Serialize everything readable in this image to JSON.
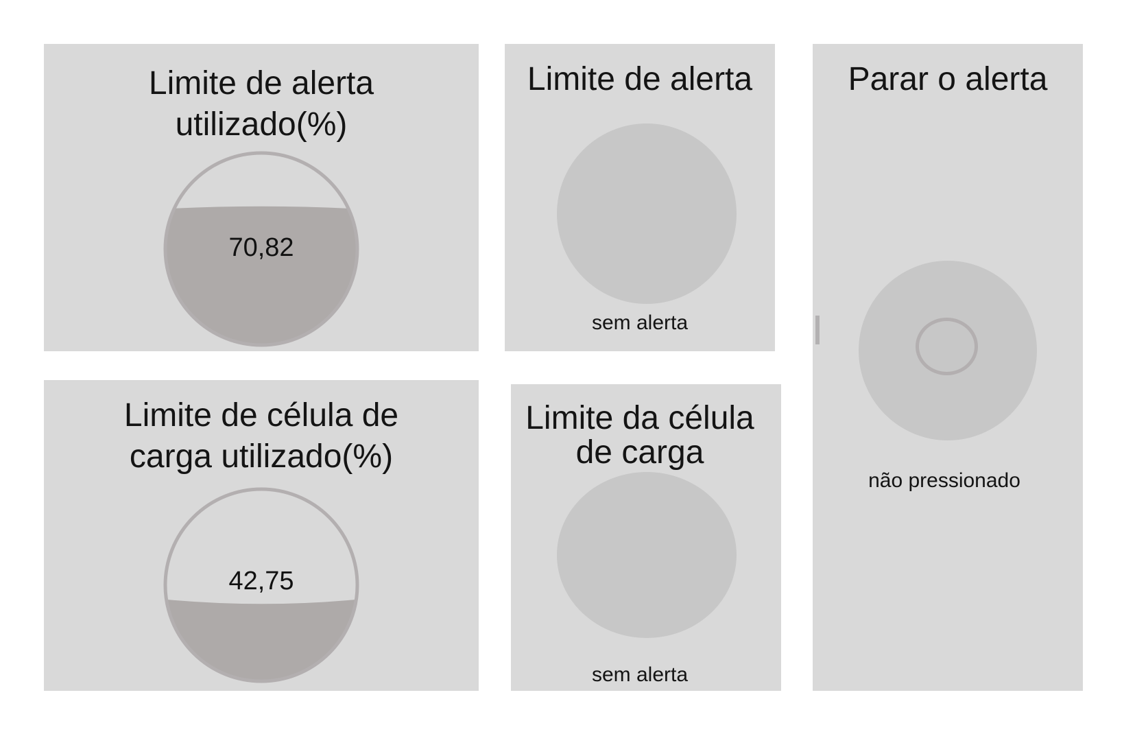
{
  "colors": {
    "panel": "#d9d9d9",
    "lamp_off": "#c7c7c7",
    "gauge_fill": "#aeaaa9",
    "gauge_ring": "#b3afb0",
    "text": "#141414"
  },
  "panels": {
    "alert_used": {
      "title_line1": "Limite de alerta",
      "title_line2": "utilizado(%)",
      "value": "70,82",
      "level_percent": 70.82
    },
    "alert_limit": {
      "title": "Limite de alerta",
      "status": "sem alerta"
    },
    "stop_alert": {
      "title": "Parar o alerta",
      "status": "não pressionado"
    },
    "load_cell_used": {
      "title_line1": "Limite de célula de",
      "title_line2": "carga utilizado(%)",
      "value": "42,75",
      "level_percent": 42.75
    },
    "load_cell_limit": {
      "title_line1": "Limite da célula",
      "title_line2": "de carga",
      "status": "sem alerta"
    }
  }
}
